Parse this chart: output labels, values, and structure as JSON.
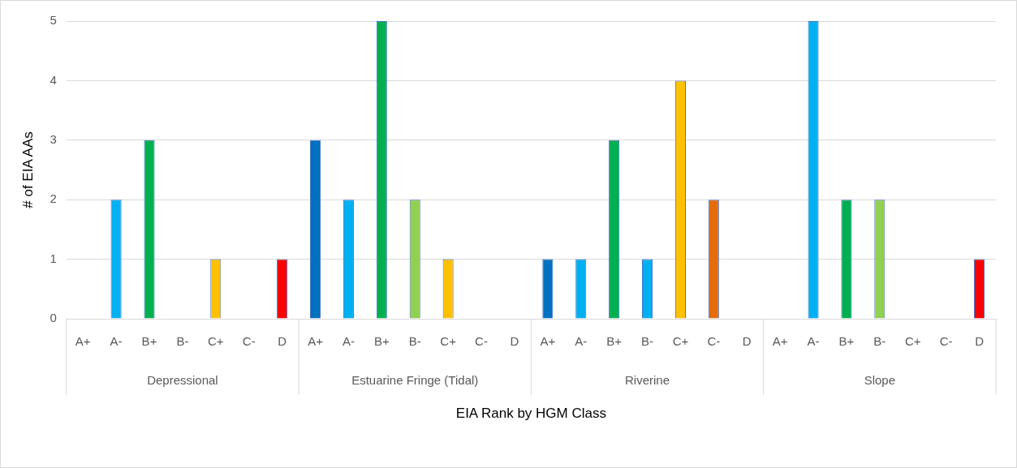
{
  "chart_data": {
    "type": "bar",
    "xlabel": "EIA Rank by HGM Class",
    "ylabel": "# of EIA AAs",
    "categories": [
      "A+",
      "A-",
      "B+",
      "B-",
      "C+",
      "C-",
      "D",
      "A+",
      "A-",
      "B+",
      "B-",
      "C+",
      "C-",
      "D",
      "A+",
      "A-",
      "B+",
      "B-",
      "C+",
      "C-",
      "D",
      "A+",
      "A-",
      "B+",
      "B-",
      "C+",
      "C-",
      "D"
    ],
    "values": [
      0,
      2,
      3,
      0,
      1,
      0,
      1,
      3,
      2,
      5,
      2,
      1,
      0,
      0,
      1,
      1,
      3,
      1,
      4,
      2,
      0,
      0,
      5,
      2,
      2,
      0,
      0,
      1
    ],
    "colors": [
      "#0070c0",
      "#00b0f0",
      "#00b050",
      "#92d050",
      "#ffc000",
      "#e46c0a",
      "#ff0000",
      "#0070c0",
      "#00b0f0",
      "#00b050",
      "#92d050",
      "#ffc000",
      "#e46c0a",
      "#ff0000",
      "#0070c0",
      "#00b0f0",
      "#00b050",
      "#00b0f0",
      "#ffc000",
      "#e46c0a",
      "#ff0000",
      "#0070c0",
      "#00b0f0",
      "#00b050",
      "#92d050",
      "#ffc000",
      "#e46c0a",
      "#ff0000"
    ],
    "annotations": [
      "Depressional",
      "Estuarine Fringe (Tidal)",
      "Riverine",
      "Slope"
    ],
    "ylim": [
      0,
      5
    ],
    "yticks": [
      0,
      1,
      2,
      3,
      4,
      5
    ],
    "grid": "y",
    "legend": false
  }
}
